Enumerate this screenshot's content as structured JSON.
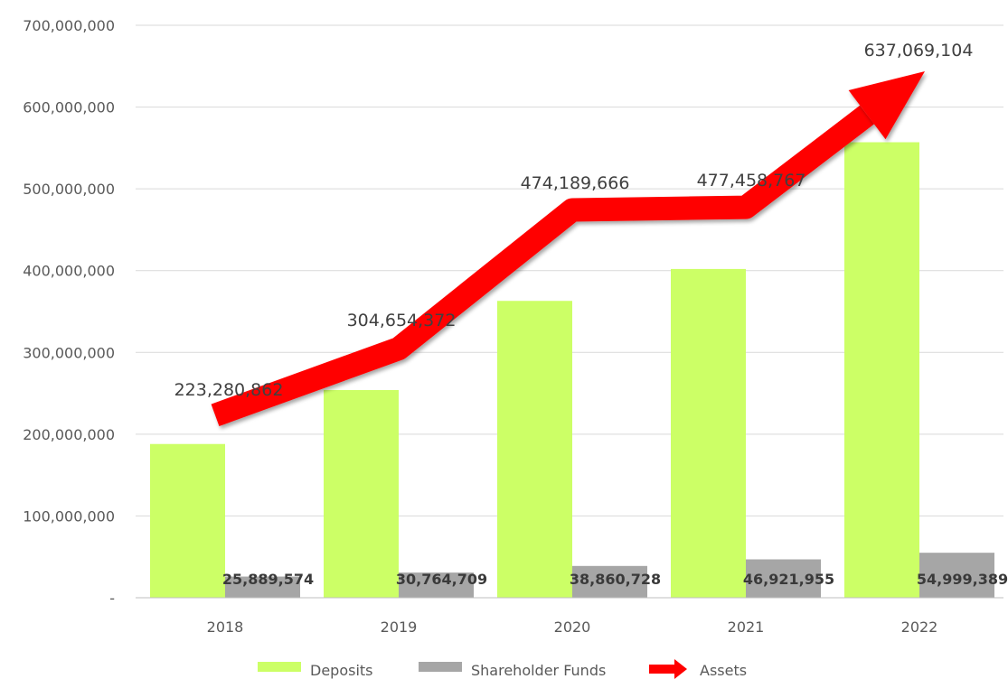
{
  "chart_data": {
    "type": "bar",
    "categories": [
      "2018",
      "2019",
      "2020",
      "2021",
      "2022"
    ],
    "series": [
      {
        "name": "Deposits",
        "kind": "bar",
        "color": "#ccff66",
        "values": [
          188000000,
          254000000,
          363000000,
          402000000,
          557000000
        ]
      },
      {
        "name": "Shareholder Funds",
        "kind": "bar",
        "color": "#a6a6a6",
        "values": [
          25889574,
          30764709,
          38860728,
          46921955,
          54999389
        ],
        "labels": [
          "25,889,574",
          "30,764,709",
          "38,860,728",
          "46,921,955",
          "54,999,389"
        ]
      },
      {
        "name": "Assets",
        "kind": "arrow-line",
        "color": "#ff0000",
        "values": [
          223280862,
          304654372,
          474189666,
          477458767,
          637069104
        ],
        "labels": [
          "223,280,862",
          "304,654,372",
          "474,189,666",
          "477,458,767",
          "637,069,104"
        ]
      }
    ],
    "ylim": [
      0,
      700000000
    ],
    "yticks": [
      0,
      100000000,
      200000000,
      300000000,
      400000000,
      500000000,
      600000000,
      700000000
    ],
    "ytick_labels": [
      "-",
      "100,000,000",
      "200,000,000",
      "300,000,000",
      "400,000,000",
      "500,000,000",
      "600,000,000",
      "700,000,000"
    ],
    "grid": true,
    "legend": "bottom"
  }
}
